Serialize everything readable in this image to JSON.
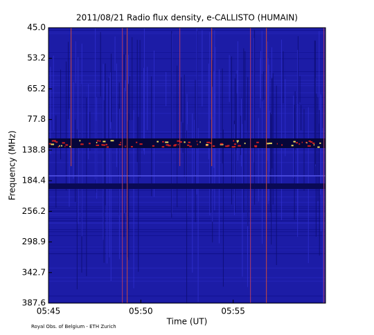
{
  "chart_data": {
    "type": "spectrogram",
    "title": "2011/08/21  Radio flux density, e-CALLISTO (HUMAIN)",
    "x_label": "Time (UT)",
    "y_label": "Frequency (MHz)",
    "xlim": [
      345,
      360
    ],
    "xticks": [
      {
        "value": 345,
        "label": "05:45"
      },
      {
        "value": 350,
        "label": "05:50"
      },
      {
        "value": 355,
        "label": "05:55"
      }
    ],
    "ytick_labels": [
      "45.0",
      "53.2",
      "65.2",
      "77.8",
      "138.8",
      "184.4",
      "256.2",
      "298.9",
      "342.7",
      "387.6"
    ],
    "footer": "Royal Obs. of Belgium - ETH Zurich"
  }
}
